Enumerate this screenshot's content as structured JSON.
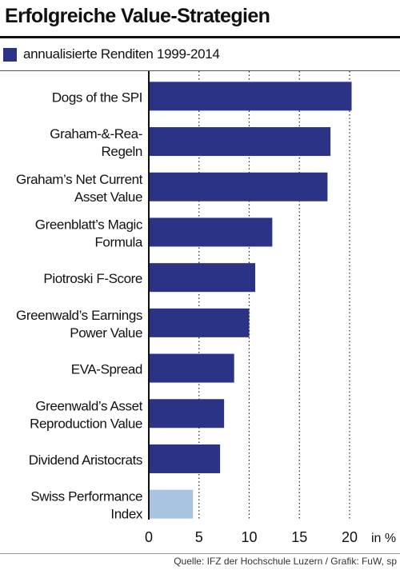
{
  "header": {
    "title": "Erfolgreiche Value-Strategien"
  },
  "legend": {
    "label": "annualisierte Renditen 1999-2014",
    "color": "#2b3387"
  },
  "footer": {
    "source": "Quelle: IFZ der Hochschule Luzern / Grafik: FuW, sp"
  },
  "chart_data": {
    "type": "bar",
    "orientation": "horizontal",
    "title": "Erfolgreiche Value-Strategien",
    "unit_label": "in %",
    "xlim": [
      0,
      25
    ],
    "x_ticks": [
      0,
      5,
      10,
      15,
      20
    ],
    "grid": "vertical dotted",
    "legend_position": "top",
    "categories": [
      [
        "Dogs of  the SPI"
      ],
      [
        "Graham-&-Rea-",
        "Regeln"
      ],
      [
        "Graham’s Net Current",
        "Asset Value"
      ],
      [
        "Greenblatt’s Magic",
        "Formula"
      ],
      [
        "Piotroski F-Score"
      ],
      [
        "Greenwald’s Earnings",
        "Power Value"
      ],
      [
        "EVA-Spread"
      ],
      [
        "Greenwald’s Asset",
        "Reproduction Value"
      ],
      [
        "Dividend Aristocrats"
      ],
      [
        "Swiss Performance",
        "Index"
      ]
    ],
    "series": [
      {
        "name": "annualisierte Renditen 1999-2014",
        "values": [
          20.2,
          18.1,
          17.8,
          12.3,
          10.6,
          10.0,
          8.5,
          7.5,
          7.1,
          4.4
        ],
        "colors": [
          "#2b3387",
          "#2b3387",
          "#2b3387",
          "#2b3387",
          "#2b3387",
          "#2b3387",
          "#2b3387",
          "#2b3387",
          "#2b3387",
          "#a7c3df"
        ]
      }
    ]
  }
}
